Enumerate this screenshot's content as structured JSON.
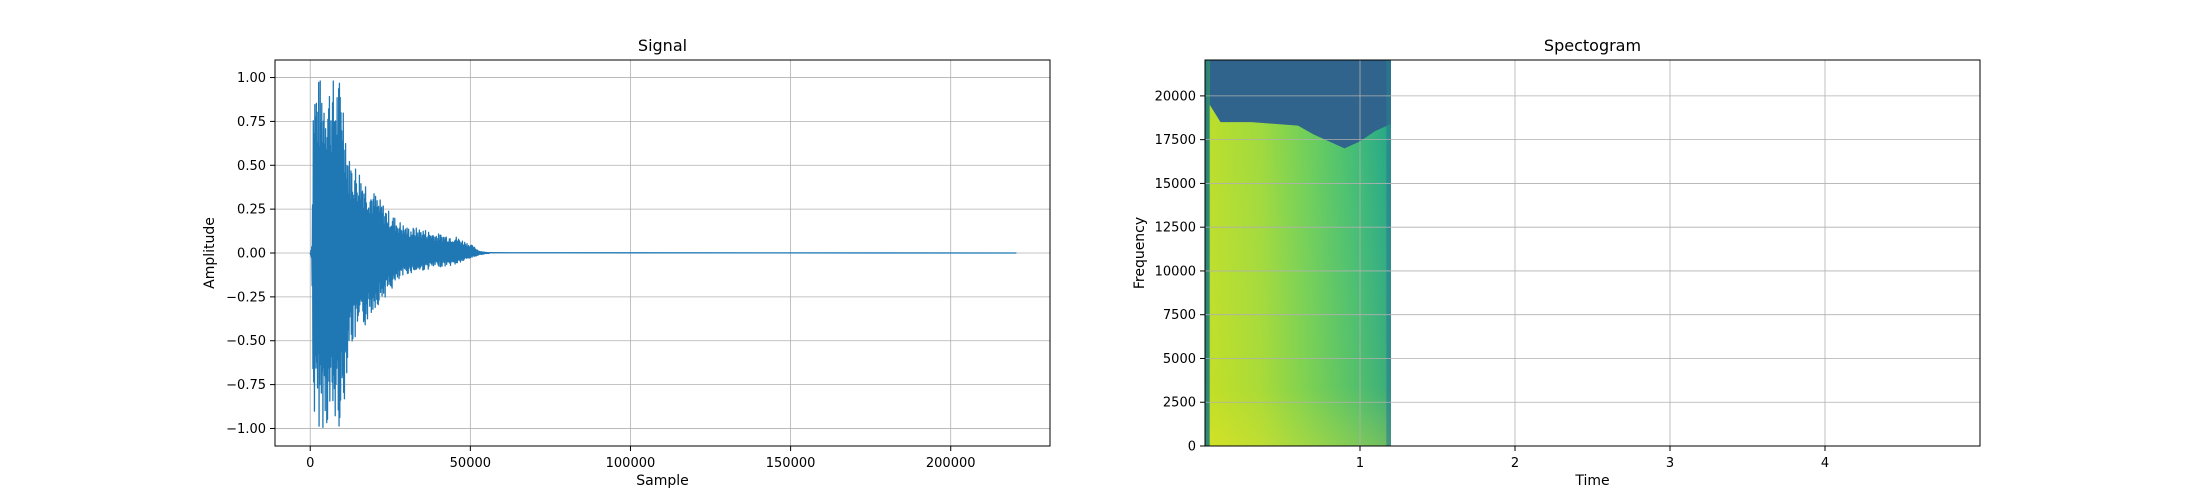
{
  "chart_data": [
    {
      "type": "line",
      "title": "Signal",
      "xlabel": "Sample",
      "ylabel": "Amplitude",
      "xlim": [
        -11000,
        231000
      ],
      "ylim": [
        -1.1,
        1.1
      ],
      "grid": true,
      "line_color": "#1f77b4",
      "x_ticks": [
        0,
        50000,
        100000,
        150000,
        200000
      ],
      "x_tick_labels": [
        "0",
        "50000",
        "100000",
        "150000",
        "200000"
      ],
      "y_ticks": [
        1.0,
        0.75,
        0.5,
        0.25,
        0.0,
        -0.25,
        -0.5,
        -0.75,
        -1.0
      ],
      "y_tick_labels": [
        "1.00",
        "0.75",
        "0.50",
        "0.25",
        "0.00",
        "−0.25",
        "−0.50",
        "−0.75",
        "−1.00"
      ],
      "envelope": {
        "sample": [
          0,
          500,
          1000,
          2000,
          5000,
          10000,
          12000,
          15000,
          20000,
          25000,
          30000,
          35000,
          40000,
          45000,
          50000,
          53000,
          55000,
          220500
        ],
        "upper": [
          0.0,
          0.05,
          1.0,
          1.0,
          1.0,
          1.0,
          0.55,
          0.5,
          0.35,
          0.23,
          0.15,
          0.14,
          0.11,
          0.1,
          0.05,
          0.01,
          0.003,
          0.003
        ],
        "lower": [
          0.0,
          -0.05,
          -1.0,
          -1.0,
          -1.0,
          -1.0,
          -0.55,
          -0.5,
          -0.32,
          -0.22,
          -0.12,
          -0.1,
          -0.08,
          -0.07,
          -0.03,
          -0.01,
          -0.003,
          -0.003
        ]
      }
    },
    {
      "type": "heatmap",
      "title": "Spectogram",
      "xlabel": "Time",
      "ylabel": "Frequency",
      "xlim": [
        0,
        5.0
      ],
      "ylim": [
        0,
        22050
      ],
      "grid": true,
      "x_ticks": [
        1,
        2,
        3,
        4
      ],
      "x_tick_labels": [
        "1",
        "2",
        "3",
        "4"
      ],
      "y_ticks": [
        0,
        2500,
        5000,
        7500,
        10000,
        12500,
        15000,
        17500,
        20000
      ],
      "y_tick_labels": [
        "0",
        "2500",
        "5000",
        "7500",
        "10000",
        "12500",
        "15000",
        "17500",
        "20000"
      ],
      "filled_time_range": [
        0,
        1.2
      ],
      "colormap": [
        "#440154",
        "#3b528b",
        "#21918c",
        "#5ec962",
        "#fde725"
      ],
      "high_freq_boundary": {
        "time": [
          0.03,
          0.1,
          0.3,
          0.6,
          0.7,
          0.9,
          1.0,
          1.1,
          1.2
        ],
        "freq": [
          19500,
          18500,
          18500,
          18300,
          17800,
          17000,
          17400,
          18000,
          18400
        ]
      }
    }
  ]
}
